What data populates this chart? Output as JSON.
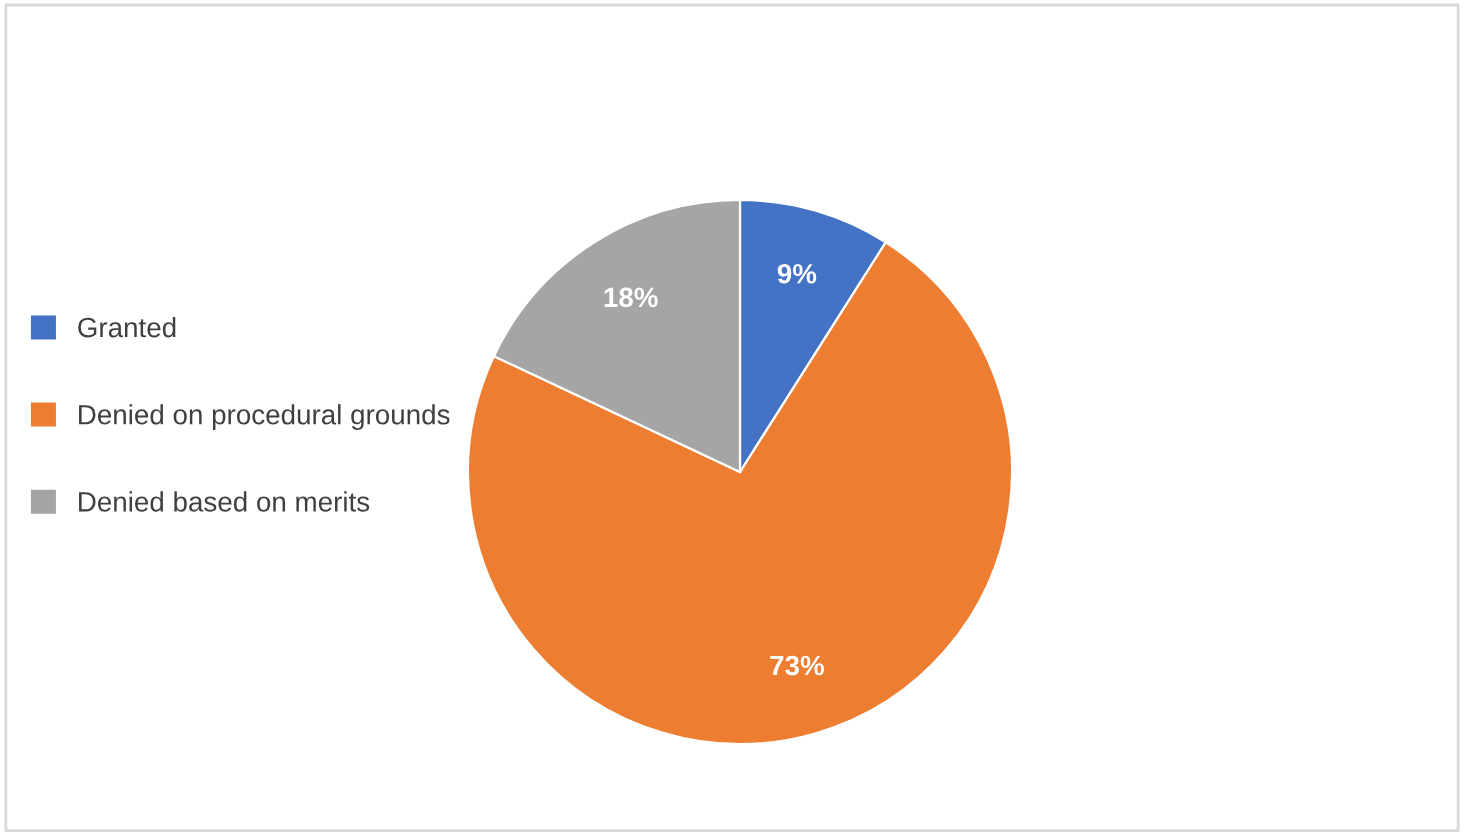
{
  "chart_data": {
    "type": "pie",
    "categories": [
      "Granted",
      "Denied on procedural grounds",
      "Denied based on merits"
    ],
    "values": [
      9,
      73,
      18
    ],
    "colors": [
      "#4472c4",
      "#ed7d31",
      "#a5a5a5"
    ],
    "value_labels": [
      "9%",
      "73%",
      "18%"
    ],
    "legend": "left"
  }
}
